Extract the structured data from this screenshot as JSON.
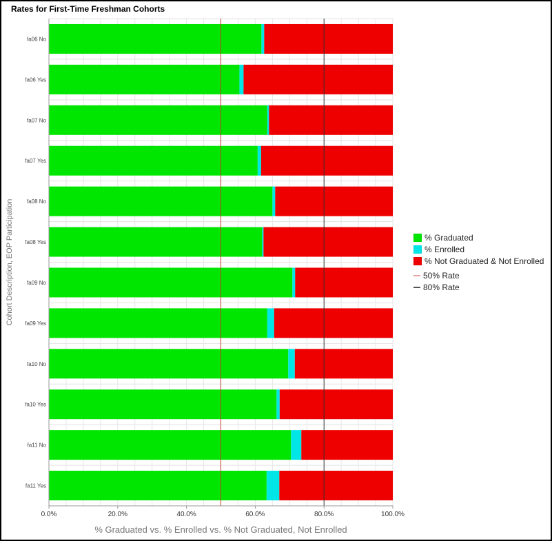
{
  "chart_data": {
    "type": "bar",
    "orientation": "horizontal",
    "stacked": true,
    "title": "Rates for First-Time Freshman Cohorts",
    "xlabel": "% Graduated vs. % Enrolled vs. % Not Graduated, Not Enrolled",
    "ylabel": "Cohort Description, EOP Participation",
    "xlim": [
      0,
      100
    ],
    "x_ticks": [
      "0.0%",
      "20.0%",
      "40.0%",
      "60.0%",
      "80.0%",
      "100.0%"
    ],
    "categories": [
      "fa06 No",
      "fa06 Yes",
      "fa07 No",
      "fa07 Yes",
      "fa08 No",
      "fa08 Yes",
      "fa09 No",
      "fa09 Yes",
      "fa10 No",
      "fa10 Yes",
      "fa11 No",
      "fa11 Yes"
    ],
    "series": [
      {
        "name": "% Graduated",
        "color": "#00e600",
        "values": [
          61.8,
          55.4,
          63.5,
          60.7,
          65.0,
          62.0,
          70.8,
          63.5,
          69.6,
          66.2,
          70.4,
          63.3
        ]
      },
      {
        "name": "% Enrolled",
        "color": "#00e6e6",
        "values": [
          0.8,
          1.2,
          0.5,
          1.0,
          0.8,
          0.4,
          0.8,
          2.0,
          1.9,
          0.9,
          3.0,
          3.7
        ]
      },
      {
        "name": "% Not Graduated & Not Enrolled",
        "color": "#ee0000",
        "values": [
          37.4,
          43.4,
          36.0,
          38.3,
          34.2,
          37.6,
          28.4,
          34.5,
          28.5,
          32.9,
          26.6,
          33.0
        ]
      }
    ],
    "reference_lines": [
      {
        "name": "50% Rate",
        "value": 50,
        "color": "#c0392b"
      },
      {
        "name": "80% Rate",
        "value": 80,
        "color": "#333333"
      }
    ],
    "grid": true,
    "legend_position": "right"
  }
}
